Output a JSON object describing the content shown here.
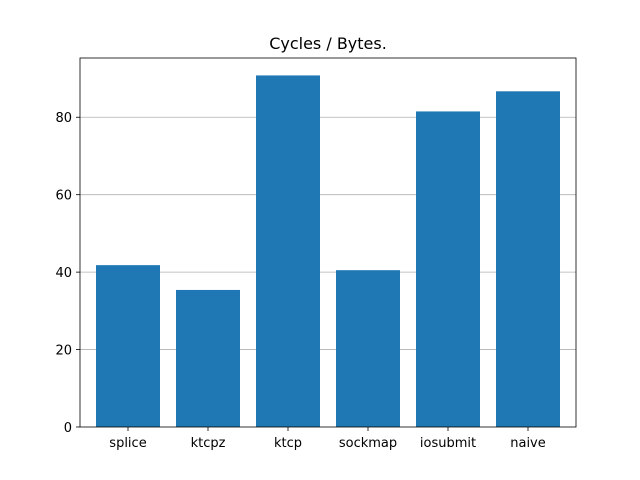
{
  "chart_data": {
    "type": "bar",
    "title": "Cycles / Bytes.",
    "xlabel": "",
    "ylabel": "",
    "categories": [
      "splice",
      "ktcpz",
      "ktcp",
      "sockmap",
      "iosubmit",
      "naive"
    ],
    "values": [
      41.8,
      35.4,
      90.8,
      40.5,
      81.5,
      86.7
    ],
    "ylim": [
      0,
      95.3
    ],
    "yticks": [
      0,
      20,
      40,
      60,
      80
    ],
    "ytick_labels": [
      "0",
      "20",
      "40",
      "60",
      "80"
    ],
    "grid": "horizontal",
    "bar_color": "#1f77b4",
    "grid_color": "#b0b0b0",
    "legend": "none"
  }
}
